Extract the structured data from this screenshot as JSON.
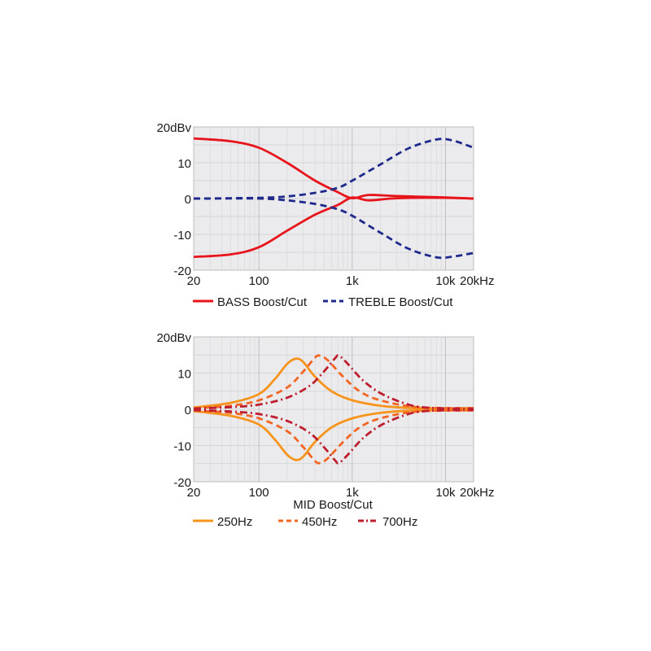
{
  "chart_data": [
    {
      "type": "line",
      "scale": "log-x",
      "y_unit_label": "20dBv",
      "xlim": [
        20,
        20000
      ],
      "ylim": [
        -20,
        20
      ],
      "x_ticks": [
        {
          "value": 20,
          "label": "20"
        },
        {
          "value": 100,
          "label": "100"
        },
        {
          "value": 1000,
          "label": "1k"
        },
        {
          "value": 10000,
          "label": "10k"
        },
        {
          "value": 20000,
          "label": "20kHz"
        }
      ],
      "y_ticks": [
        {
          "value": 20,
          "label": "20dBv"
        },
        {
          "value": 10,
          "label": "10"
        },
        {
          "value": 0,
          "label": "0"
        },
        {
          "value": -10,
          "label": "-10"
        },
        {
          "value": -20,
          "label": "-20"
        }
      ],
      "grid": true,
      "legend_title": "",
      "legend": [
        {
          "label": "BASS Boost/Cut",
          "color": "#e8141c",
          "dash": "solid"
        },
        {
          "label": "TREBLE Boost/Cut",
          "color": "#1f2a8c",
          "dash": "dashed"
        }
      ],
      "series": [
        {
          "name": "BASS Boost/Cut",
          "legend": 0,
          "x": [
            20,
            50,
            100,
            200,
            400,
            700,
            1000,
            1500,
            3000,
            10000,
            20000
          ],
          "y": [
            16.8,
            16,
            14.2,
            10,
            5,
            1.8,
            0.1,
            1,
            0.7,
            0.3,
            0
          ]
        },
        {
          "name": "BASS Boost/Cut",
          "legend": 0,
          "x": [
            20,
            50,
            100,
            200,
            400,
            700,
            1000,
            1500,
            3000,
            10000,
            20000
          ],
          "y": [
            -16.3,
            -15.6,
            -13.6,
            -9,
            -4.5,
            -1.8,
            0.3,
            -0.5,
            0.1,
            0.2,
            0
          ]
        },
        {
          "name": "TREBLE Boost/Cut",
          "legend": 1,
          "x": [
            20,
            100,
            200,
            400,
            700,
            1000,
            2000,
            4000,
            8000,
            12000,
            20000
          ],
          "y": [
            0,
            0.2,
            0.6,
            1.6,
            3,
            5,
            9.5,
            14,
            16.5,
            16.2,
            14.2
          ]
        },
        {
          "name": "TREBLE Boost/Cut",
          "legend": 1,
          "x": [
            20,
            100,
            200,
            400,
            700,
            1000,
            2000,
            4000,
            8000,
            12000,
            20000
          ],
          "y": [
            0,
            0,
            -0.5,
            -1.5,
            -3,
            -4.8,
            -9.5,
            -14,
            -16.4,
            -16.2,
            -15.2
          ]
        }
      ]
    },
    {
      "type": "line",
      "scale": "log-x",
      "xlabel": "MID Boost/Cut",
      "xlim": [
        20,
        20000
      ],
      "ylim": [
        -20,
        20
      ],
      "x_ticks": [
        {
          "value": 20,
          "label": "20"
        },
        {
          "value": 100,
          "label": "100"
        },
        {
          "value": 1000,
          "label": "1k"
        },
        {
          "value": 10000,
          "label": "10k"
        },
        {
          "value": 20000,
          "label": "20kHz"
        }
      ],
      "y_ticks": [
        {
          "value": 20,
          "label": "20dBv"
        },
        {
          "value": 10,
          "label": "10"
        },
        {
          "value": 0,
          "label": "0"
        },
        {
          "value": -10,
          "label": "-10"
        },
        {
          "value": -20,
          "label": "-20"
        }
      ],
      "grid": true,
      "legend": [
        {
          "label": "250Hz",
          "color": "#f7941d",
          "dash": "solid"
        },
        {
          "label": "450Hz",
          "color": "#f26522",
          "dash": "dashed"
        },
        {
          "label": "700Hz",
          "color": "#be1e2d",
          "dash": "dashdot"
        }
      ],
      "series": [
        {
          "name": "250Hz",
          "legend": 0,
          "x": [
            20,
            50,
            100,
            150,
            200,
            250,
            300,
            400,
            600,
            1000,
            2000,
            5000,
            20000
          ],
          "y": [
            0.5,
            1.8,
            4.2,
            8.5,
            12.5,
            14,
            13,
            9,
            5,
            2.5,
            1,
            0.3,
            0.3
          ]
        },
        {
          "name": "250Hz",
          "legend": 0,
          "x": [
            20,
            50,
            100,
            150,
            200,
            250,
            300,
            400,
            600,
            1000,
            2000,
            5000,
            20000
          ],
          "y": [
            -0.5,
            -1.8,
            -4.2,
            -8.5,
            -12.5,
            -14,
            -13,
            -9,
            -5,
            -2.5,
            -1,
            -0.3,
            -0.3
          ]
        },
        {
          "name": "450Hz",
          "legend": 1,
          "x": [
            20,
            50,
            100,
            200,
            300,
            400,
            450,
            550,
            800,
            1200,
            2000,
            5000,
            20000
          ],
          "y": [
            0.3,
            1,
            2.5,
            6,
            10.5,
            14.3,
            14.8,
            13.5,
            9,
            5,
            2.5,
            0.6,
            0.3
          ]
        },
        {
          "name": "450Hz",
          "legend": 1,
          "x": [
            20,
            50,
            100,
            200,
            300,
            400,
            450,
            550,
            800,
            1200,
            2000,
            5000,
            20000
          ],
          "y": [
            -0.3,
            -1,
            -2.5,
            -6,
            -10.5,
            -14.3,
            -14.8,
            -13.5,
            -9,
            -5,
            -2.5,
            -0.6,
            -0.3
          ]
        },
        {
          "name": "700Hz",
          "legend": 2,
          "x": [
            20,
            50,
            100,
            200,
            350,
            500,
            650,
            720,
            900,
            1300,
            2000,
            3500,
            6000,
            20000
          ],
          "y": [
            0.2,
            0.6,
            1.3,
            3.2,
            6.5,
            10.5,
            14,
            14.8,
            12.5,
            8,
            4.5,
            1.8,
            0.5,
            0.2
          ]
        },
        {
          "name": "700Hz",
          "legend": 2,
          "x": [
            20,
            50,
            100,
            200,
            350,
            500,
            650,
            720,
            900,
            1300,
            2000,
            3500,
            6000,
            20000
          ],
          "y": [
            -0.2,
            -0.6,
            -1.3,
            -3.2,
            -6.5,
            -10.5,
            -14,
            -14.8,
            -12.5,
            -8,
            -4.5,
            -1.8,
            -0.5,
            -0.2
          ]
        }
      ]
    }
  ]
}
